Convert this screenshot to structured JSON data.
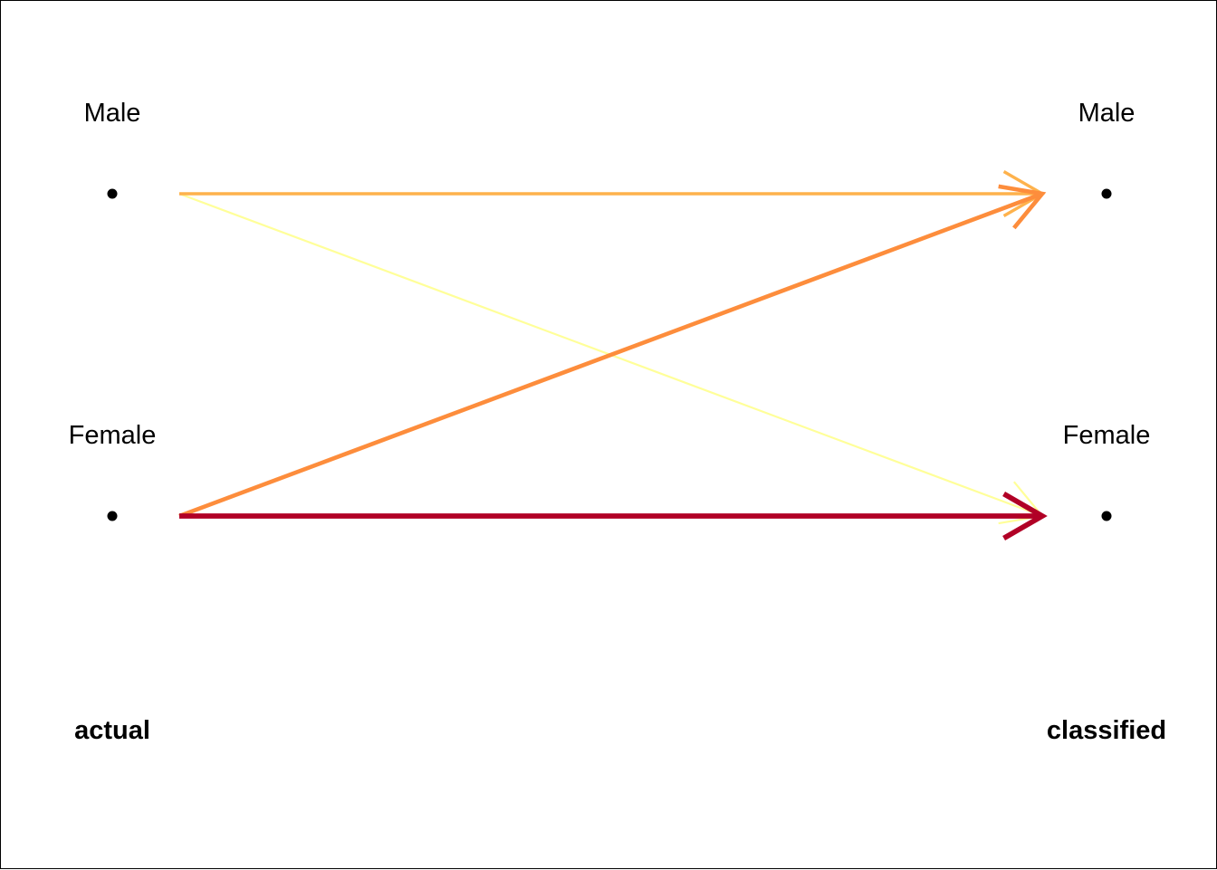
{
  "actual_side": {
    "nodes": [
      "Male",
      "Female"
    ],
    "heading": "actual"
  },
  "classified_side": {
    "nodes": [
      "Male",
      "Female"
    ],
    "heading": "classified"
  },
  "flows": [
    {
      "from": "Male",
      "to": "Male",
      "color": "#FEB24C",
      "weight": 2
    },
    {
      "from": "Male",
      "to": "Female",
      "color": "#FFFF99",
      "weight": 1
    },
    {
      "from": "Female",
      "to": "Male",
      "color": "#FD8D3C",
      "weight": 3
    },
    {
      "from": "Female",
      "to": "Female",
      "color": "#B10026",
      "weight": 4
    }
  ]
}
